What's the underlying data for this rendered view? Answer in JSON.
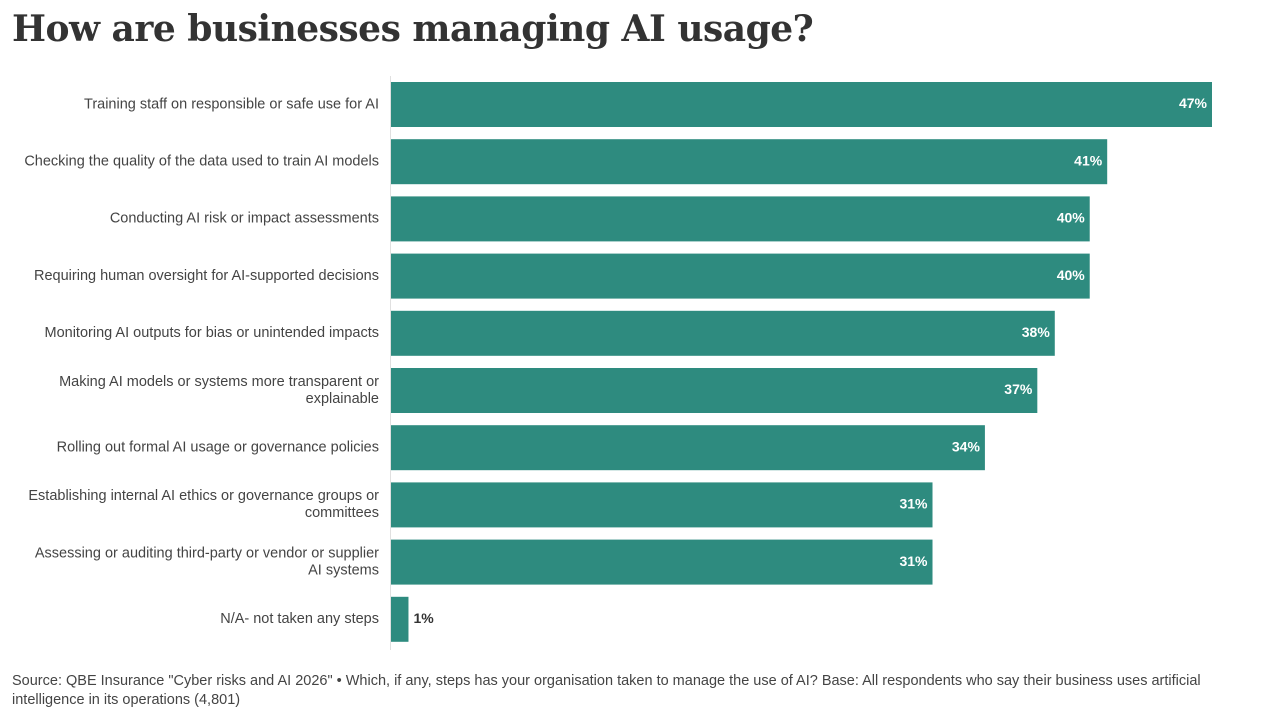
{
  "title": "How are businesses managing AI usage?",
  "source_note": "Source: QBE Insurance \"Cyber risks and AI 2026\" • Which, if any, steps has your organisation taken to manage the use of AI? Base: All respondents who say their business uses artificial intelligence in its operations (4,801)",
  "colors": {
    "bar": "#2e8b7f",
    "label_inside": "#ffffff",
    "label_outside": "#333333",
    "axis_line": "#e0e0e0"
  },
  "chart_data": {
    "type": "bar",
    "orientation": "horizontal",
    "title": "How are businesses managing AI usage?",
    "categories": [
      [
        "Training staff on responsible or safe use for AI"
      ],
      [
        "Checking the quality of the data used to train AI models"
      ],
      [
        "Conducting AI risk or impact assessments"
      ],
      [
        "Requiring human oversight for AI-supported decisions"
      ],
      [
        "Monitoring AI outputs for bias or unintended impacts"
      ],
      [
        "Making AI models or systems more transparent or",
        "explainable"
      ],
      [
        "Rolling out formal AI usage or governance policies"
      ],
      [
        "Establishing internal AI ethics or governance groups or",
        "committees"
      ],
      [
        "Assessing or auditing third-party or vendor or supplier",
        "AI systems"
      ],
      [
        "N/A- not taken any steps"
      ]
    ],
    "values": [
      47,
      41,
      40,
      40,
      38,
      37,
      34,
      31,
      31,
      1
    ],
    "value_labels": [
      "47%",
      "41%",
      "40%",
      "40%",
      "38%",
      "37%",
      "34%",
      "31%",
      "31%",
      "1%"
    ],
    "xlim": [
      0,
      47
    ],
    "grid": false
  }
}
